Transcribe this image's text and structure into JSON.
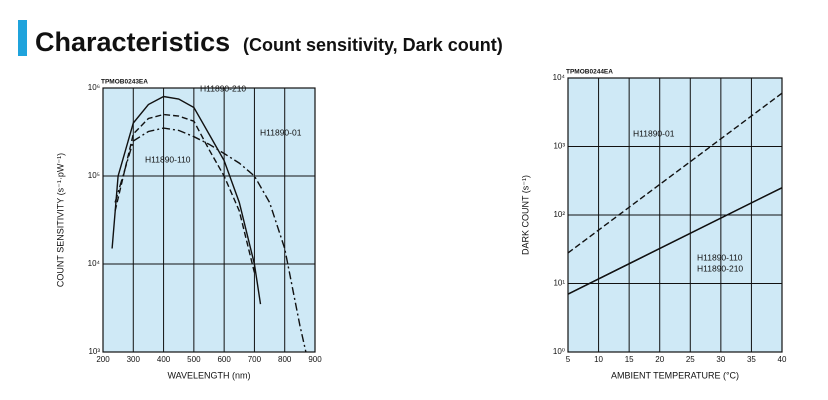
{
  "header": {
    "title": "Characteristics",
    "subtitle": "(Count sensitivity, Dark count)"
  },
  "chart_data": [
    {
      "type": "line",
      "code": "TPMOB0243EA",
      "x_label": "WAVELENGTH (nm)",
      "y_label": "COUNT SENSITIVITY (s⁻¹·pW⁻¹)",
      "log_y": true,
      "grid": true,
      "xlim": [
        200,
        900
      ],
      "xticks": [
        200,
        300,
        400,
        500,
        600,
        700,
        800,
        900
      ],
      "ylim": [
        1000,
        1000000
      ],
      "yticks": [
        {
          "value": 1000,
          "label": "10³"
        },
        {
          "value": 10000,
          "label": "10⁴"
        },
        {
          "value": 100000,
          "label": "10⁵"
        },
        {
          "value": 1000000,
          "label": "10⁶"
        }
      ],
      "series": [
        {
          "name": "H11890-210",
          "color": "#111111",
          "dash": "solid",
          "x": [
            230,
            250,
            300,
            350,
            400,
            450,
            500,
            550,
            600,
            650,
            700,
            720
          ],
          "values": [
            15000,
            100000,
            400000,
            650000,
            800000,
            750000,
            600000,
            300000,
            150000,
            50000,
            10000,
            3500
          ]
        },
        {
          "name": "H11890-110",
          "color": "#111111",
          "dash": "dashed",
          "x": [
            240,
            300,
            350,
            400,
            450,
            500,
            550,
            600,
            650,
            700
          ],
          "values": [
            40000,
            300000,
            450000,
            500000,
            480000,
            420000,
            200000,
            100000,
            40000,
            8000
          ]
        },
        {
          "name": "H11890-01",
          "color": "#111111",
          "dash": "dashdot",
          "x": [
            240,
            300,
            350,
            400,
            450,
            500,
            550,
            600,
            650,
            700,
            750,
            800,
            850,
            870
          ],
          "values": [
            50000,
            250000,
            320000,
            350000,
            330000,
            280000,
            230000,
            180000,
            140000,
            100000,
            50000,
            15000,
            2000,
            1000
          ]
        }
      ]
    },
    {
      "type": "line",
      "code": "TPMOB0244EA",
      "x_label": "AMBIENT TEMPERATURE (°C)",
      "y_label": "DARK COUNT (s⁻¹)",
      "log_y": true,
      "grid": true,
      "xlim": [
        5,
        40
      ],
      "xticks": [
        5,
        10,
        15,
        20,
        25,
        30,
        35,
        40
      ],
      "ylim": [
        1,
        10000
      ],
      "yticks": [
        {
          "value": 1,
          "label": "10⁰"
        },
        {
          "value": 10,
          "label": "10¹"
        },
        {
          "value": 100,
          "label": "10²"
        },
        {
          "value": 1000,
          "label": "10³"
        },
        {
          "value": 10000,
          "label": "10⁴"
        }
      ],
      "series": [
        {
          "name": "H11890-01",
          "color": "#111111",
          "dash": "dashed",
          "x": [
            5,
            40
          ],
          "values": [
            28,
            6000
          ]
        },
        {
          "name": "H11890-110",
          "color": "#111111",
          "dash": "solid",
          "x": [
            5,
            40
          ],
          "values": [
            7,
            250
          ]
        },
        {
          "name": "H11890-210",
          "color": "#111111",
          "dash": "solid",
          "x": [
            5,
            40
          ],
          "values": [
            7,
            250
          ]
        }
      ]
    }
  ]
}
